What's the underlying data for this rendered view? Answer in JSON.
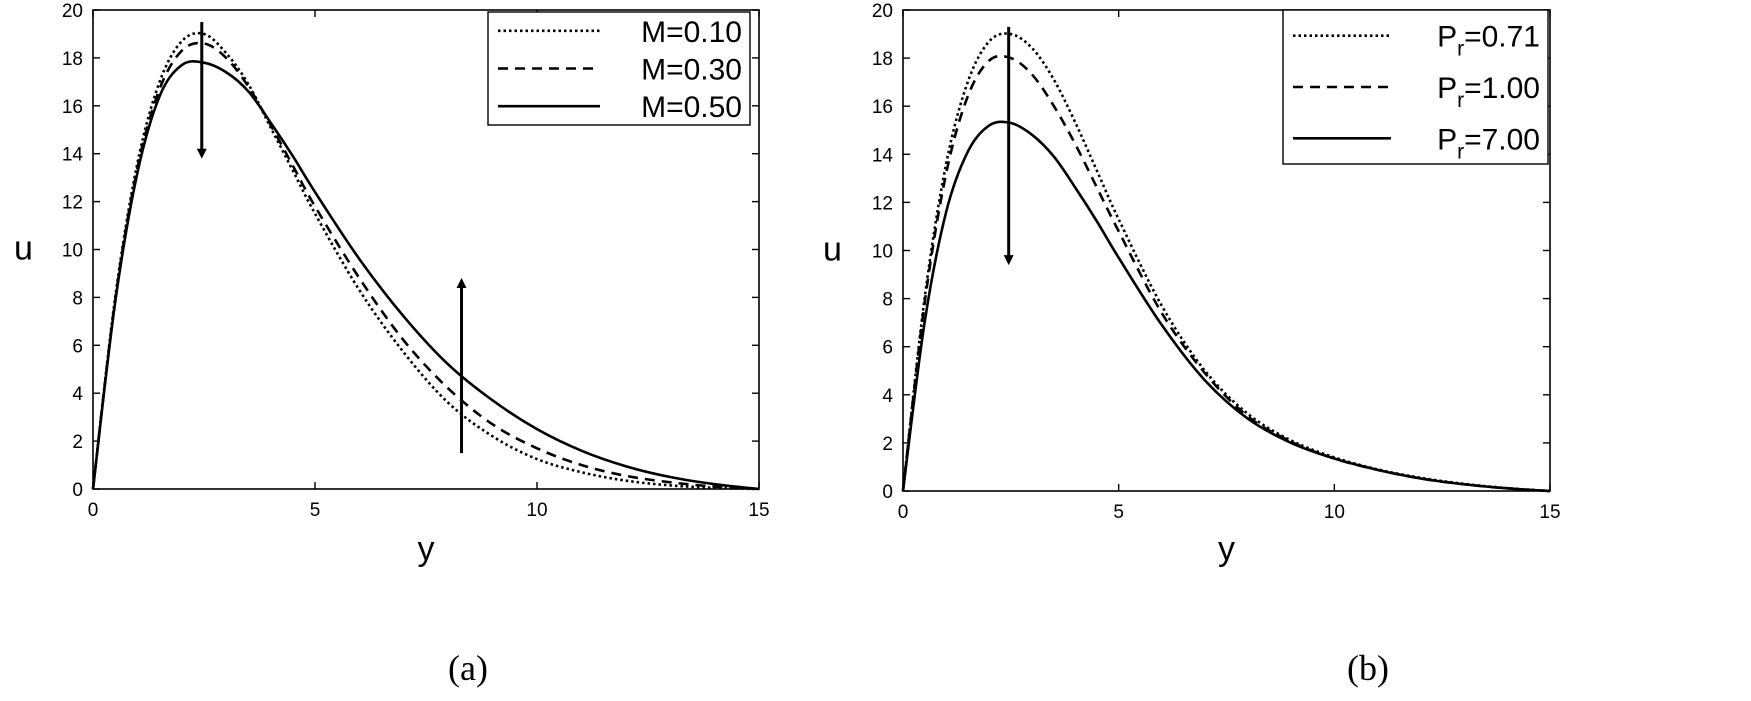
{
  "chart_data": [
    {
      "type": "line",
      "panel": "(a)",
      "xlabel": "y",
      "ylabel": "u",
      "xlim": [
        0,
        15
      ],
      "ylim": [
        0,
        20
      ],
      "xticks": [
        0,
        5,
        10,
        15
      ],
      "yticks": [
        0,
        2,
        4,
        6,
        8,
        10,
        12,
        14,
        16,
        18,
        20
      ],
      "grid": false,
      "legend_position": "top-right",
      "x": [
        0,
        0.5,
        1,
        1.5,
        2,
        2.5,
        3,
        3.5,
        4,
        4.5,
        5,
        6,
        7,
        8,
        9,
        10,
        11,
        12,
        13,
        14,
        15
      ],
      "series": [
        {
          "name": "M=0.10",
          "style": "dotted",
          "values": [
            0,
            8.0,
            13.6,
            17.0,
            18.7,
            19.0,
            18.2,
            16.9,
            15.1,
            13.3,
            11.5,
            8.3,
            5.7,
            3.6,
            2.2,
            1.25,
            0.7,
            0.35,
            0.15,
            0.05,
            0
          ]
        },
        {
          "name": "M=0.30",
          "style": "dashed",
          "values": [
            0,
            7.9,
            13.4,
            16.7,
            18.3,
            18.6,
            18.0,
            16.8,
            15.2,
            13.5,
            11.8,
            8.8,
            6.2,
            4.2,
            2.7,
            1.7,
            1.0,
            0.55,
            0.28,
            0.1,
            0
          ]
        },
        {
          "name": "M=0.50",
          "style": "solid",
          "values": [
            0,
            7.8,
            13.2,
            16.4,
            17.7,
            17.8,
            17.4,
            16.6,
            15.3,
            13.9,
            12.4,
            9.6,
            7.2,
            5.2,
            3.7,
            2.5,
            1.6,
            0.95,
            0.5,
            0.2,
            0
          ]
        }
      ],
      "arrows": [
        {
          "x": 2.45,
          "from": 19.5,
          "to": 14.0
        },
        {
          "x": 8.3,
          "from": 1.5,
          "to": 8.6
        }
      ]
    },
    {
      "type": "line",
      "panel": "(b)",
      "xlabel": "y",
      "ylabel": "u",
      "xlim": [
        0,
        15
      ],
      "ylim": [
        0,
        20
      ],
      "xticks": [
        0,
        5,
        10,
        15
      ],
      "yticks": [
        0,
        2,
        4,
        6,
        8,
        10,
        12,
        14,
        16,
        18,
        20
      ],
      "grid": false,
      "legend_position": "top-right",
      "x": [
        0,
        0.5,
        1,
        1.5,
        2,
        2.5,
        3,
        3.5,
        4,
        4.5,
        5,
        6,
        7,
        8,
        9,
        10,
        11,
        12,
        13,
        14,
        15
      ],
      "series": [
        {
          "name": "Pr=0.71",
          "label_base": "P",
          "label_sub": "r",
          "label_rest": "=0.71",
          "style": "dotted",
          "values": [
            0,
            8.0,
            13.6,
            17.0,
            18.7,
            19.0,
            18.4,
            17.1,
            15.3,
            13.3,
            11.3,
            7.7,
            5.0,
            3.2,
            2.1,
            1.4,
            0.9,
            0.55,
            0.3,
            0.12,
            0
          ]
        },
        {
          "name": "Pr=1.00",
          "label_base": "P",
          "label_sub": "r",
          "label_rest": "=1.00",
          "style": "dashed",
          "values": [
            0,
            7.8,
            13.2,
            16.4,
            17.9,
            18.0,
            17.3,
            16.0,
            14.4,
            12.6,
            10.8,
            7.4,
            4.9,
            3.1,
            2.05,
            1.35,
            0.88,
            0.52,
            0.28,
            0.11,
            0
          ]
        },
        {
          "name": "Pr=7.00",
          "label_base": "P",
          "label_sub": "r",
          "label_rest": "=7.00",
          "style": "solid",
          "values": [
            0,
            7.0,
            11.6,
            14.1,
            15.2,
            15.3,
            14.8,
            13.9,
            12.6,
            11.2,
            9.7,
            6.9,
            4.6,
            3.0,
            2.0,
            1.35,
            0.88,
            0.52,
            0.28,
            0.11,
            0
          ]
        }
      ],
      "arrows": [
        {
          "x": 2.45,
          "from": 19.3,
          "to": 9.6
        }
      ]
    }
  ],
  "captions": [
    "(a)",
    "(b)"
  ]
}
